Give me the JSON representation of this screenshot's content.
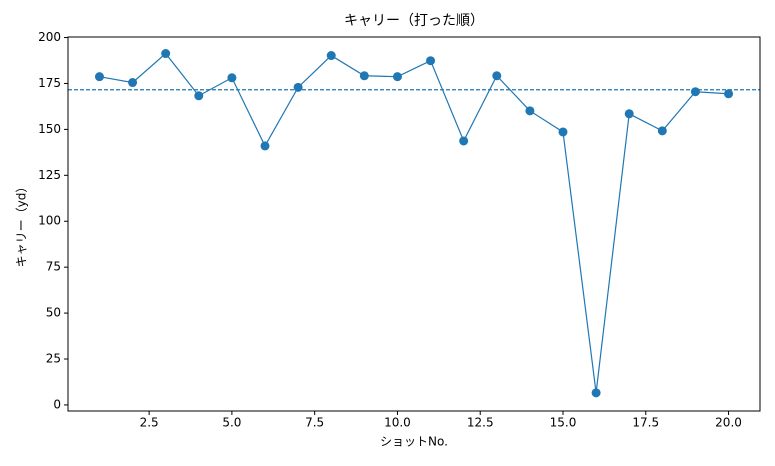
{
  "chart_data": {
    "type": "line",
    "title": "キャリー（打った順）",
    "x_label": "ショットNo.",
    "y_label": "キャリー（yd）",
    "x": [
      1,
      2,
      3,
      4,
      5,
      6,
      7,
      8,
      9,
      10,
      11,
      12,
      13,
      14,
      15,
      16,
      17,
      18,
      19,
      20
    ],
    "series": [
      {
        "color": "#1f77b4",
        "values": [
          178.7,
          175.5,
          191.3,
          168.3,
          178.1,
          141.0,
          172.9,
          190.2,
          179.2,
          178.7,
          187.4,
          143.7,
          179.2,
          160.1,
          148.6,
          6.6,
          158.5,
          149.2,
          170.5,
          169.4
        ]
      }
    ],
    "reference_line": 171.6,
    "xlim": [
      0.05,
      20.95
    ],
    "xticks": [
      2.5,
      {
        "value": 5,
        "label": "5.0"
      },
      7.5,
      {
        "value": 10,
        "label": "10.0"
      },
      12.5,
      {
        "value": 15,
        "label": "15.0"
      },
      17.5,
      {
        "value": 20,
        "label": "20.0"
      }
    ],
    "ylim": [
      -3.3,
      200.3
    ],
    "yticks": [
      0,
      25,
      50,
      75,
      100,
      125,
      150,
      175,
      200
    ]
  }
}
